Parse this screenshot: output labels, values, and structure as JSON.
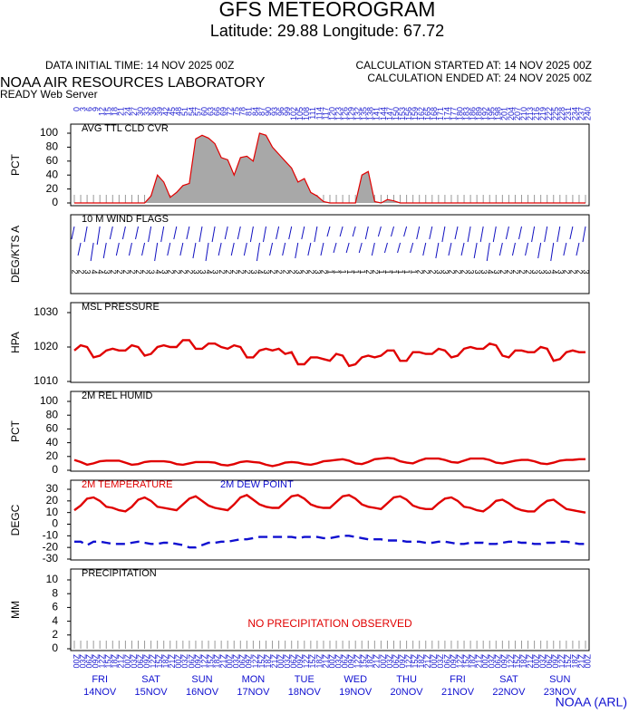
{
  "header": {
    "title": "GFS METEOROGRAM",
    "location": "Latitude: 29.88 Longitude:  67.72",
    "init_time": "DATA INITIAL TIME: 14 NOV 2025 00Z",
    "calc_started": "CALCULATION STARTED AT: 14 NOV 2025 00Z",
    "calc_ended": "CALCULATION ENDED AT: 24 NOV 2025 00Z",
    "lab": "NOAA AIR RESOURCES LABORATORY",
    "server": "READY Web Server",
    "credit": "NOAA (ARL)"
  },
  "time_axis": {
    "xlim": [
      0,
      240
    ],
    "x": [
      0,
      3,
      6,
      9,
      12,
      15,
      18,
      21,
      24,
      27,
      30,
      33,
      36,
      39,
      42,
      45,
      48,
      51,
      54,
      57,
      60,
      63,
      66,
      69,
      72,
      75,
      78,
      81,
      84,
      87,
      90,
      93,
      96,
      99,
      102,
      105,
      108,
      111,
      114,
      117,
      120,
      123,
      126,
      129,
      132,
      135,
      138,
      141,
      144,
      147,
      150,
      153,
      156,
      159,
      162,
      165,
      168,
      171,
      174,
      177,
      180,
      183,
      186,
      189,
      192,
      195,
      198,
      201,
      204,
      207,
      210,
      213,
      216,
      219,
      222,
      225,
      228,
      231,
      234,
      237,
      240
    ],
    "hour_labels": [
      "00Z",
      "03Z",
      "06Z",
      "09Z",
      "12Z",
      "15Z",
      "18Z",
      "21Z",
      "00Z",
      "03Z",
      "06Z",
      "09Z",
      "12Z",
      "15Z",
      "18Z",
      "21Z",
      "00Z",
      "03Z",
      "06Z",
      "09Z",
      "12Z",
      "15Z",
      "18Z",
      "21Z",
      "00Z",
      "03Z",
      "06Z",
      "09Z",
      "12Z",
      "15Z",
      "18Z",
      "21Z",
      "00Z",
      "03Z",
      "06Z",
      "09Z",
      "12Z",
      "15Z",
      "18Z",
      "21Z",
      "00Z",
      "03Z",
      "06Z",
      "09Z",
      "12Z",
      "15Z",
      "18Z",
      "21Z",
      "00Z",
      "03Z",
      "06Z",
      "09Z",
      "12Z",
      "15Z",
      "18Z",
      "21Z",
      "00Z",
      "03Z",
      "06Z",
      "09Z",
      "12Z",
      "15Z",
      "18Z",
      "21Z",
      "00Z",
      "03Z",
      "06Z",
      "09Z",
      "12Z",
      "15Z",
      "18Z",
      "21Z",
      "00Z",
      "03Z",
      "06Z",
      "09Z",
      "12Z",
      "15Z",
      "18Z",
      "21Z",
      "00Z"
    ],
    "days": [
      {
        "name": "FRI",
        "date": "14NOV"
      },
      {
        "name": "SAT",
        "date": "15NOV"
      },
      {
        "name": "SUN",
        "date": "16NOV"
      },
      {
        "name": "MON",
        "date": "17NOV"
      },
      {
        "name": "TUE",
        "date": "18NOV"
      },
      {
        "name": "WED",
        "date": "19NOV"
      },
      {
        "name": "THU",
        "date": "20NOV"
      },
      {
        "name": "FRI",
        "date": "21NOV"
      },
      {
        "name": "SAT",
        "date": "22NOV"
      },
      {
        "name": "SUN",
        "date": "23NOV"
      }
    ]
  },
  "chart_data": [
    {
      "type": "area",
      "title": "AVG TTL CLD CVR",
      "ylabel": "PCT",
      "ylim": [
        0,
        100
      ],
      "yticks": [
        0,
        20,
        40,
        60,
        80,
        100
      ],
      "series": [
        {
          "name": "AVG TTL CLD CVR",
          "color": "#e00000",
          "fill": "#a8a8a8",
          "values": [
            0,
            0,
            0,
            0,
            0,
            0,
            0,
            0,
            0,
            0,
            0,
            0,
            10,
            40,
            30,
            8,
            15,
            25,
            28,
            92,
            97,
            93,
            85,
            65,
            62,
            40,
            65,
            67,
            60,
            100,
            97,
            80,
            70,
            60,
            50,
            30,
            35,
            15,
            10,
            2,
            0,
            0,
            0,
            0,
            0,
            40,
            45,
            2,
            0,
            5,
            3,
            0,
            0,
            0,
            0,
            0,
            0,
            0,
            0,
            0,
            0,
            0,
            0,
            0,
            0,
            0,
            0,
            0,
            0,
            0,
            0,
            0,
            0,
            0,
            0,
            0,
            0,
            0,
            0,
            0,
            0
          ]
        }
      ]
    },
    {
      "type": "wind",
      "title": "10 M  WIND FLAGS",
      "ylabel": "DEG/KTS  A",
      "color": "#1010c0",
      "series": [
        {
          "name": "10 M  WIND FLAGS",
          "color": "#1010c0",
          "values": [
            2,
            2,
            3,
            4,
            4,
            3,
            2,
            2,
            2,
            2,
            2,
            2,
            3,
            4,
            3,
            2,
            2,
            2,
            2,
            3,
            3,
            4,
            3,
            2,
            2,
            2,
            2,
            2,
            3,
            4,
            3,
            2,
            2,
            2,
            2,
            3,
            2,
            2,
            3,
            2,
            1,
            1,
            1,
            1,
            1,
            1,
            2,
            2,
            1,
            1,
            1,
            1,
            1,
            1,
            2,
            2,
            2,
            3,
            3,
            2,
            2,
            2,
            3,
            3,
            3,
            4,
            3,
            2,
            2,
            2,
            2,
            2,
            3,
            3,
            3,
            4,
            3,
            2,
            2,
            2,
            3
          ]
        }
      ]
    },
    {
      "type": "line",
      "title": "MSL PRESSURE",
      "ylabel": "HPA",
      "ylim": [
        1010,
        1030
      ],
      "yticks": [
        1010,
        1020,
        1030
      ],
      "series": [
        {
          "name": "MSL PRESSURE",
          "color": "#e00000",
          "values": [
            1019,
            1020.5,
            1020,
            1017,
            1017.5,
            1019,
            1019.5,
            1019,
            1019,
            1020.5,
            1020,
            1017.5,
            1018,
            1020,
            1020.5,
            1020,
            1020,
            1022,
            1022,
            1019.5,
            1019.5,
            1021,
            1021,
            1020,
            1019.5,
            1020.5,
            1020,
            1017,
            1017,
            1019,
            1019.5,
            1019,
            1019.5,
            1018,
            1018.5,
            1015,
            1015,
            1017,
            1017,
            1016.5,
            1016,
            1018,
            1017.5,
            1014.5,
            1015,
            1017,
            1017.5,
            1017,
            1017.5,
            1019,
            1019,
            1016,
            1016,
            1018.5,
            1018.5,
            1018,
            1018,
            1019.5,
            1019,
            1017,
            1017.5,
            1019.5,
            1020,
            1019.5,
            1019.5,
            1021,
            1020.5,
            1017.5,
            1017,
            1019,
            1019,
            1018.5,
            1018.5,
            1020,
            1019.5,
            1016,
            1016.5,
            1018.5,
            1019,
            1018.5,
            1018.5
          ]
        }
      ]
    },
    {
      "type": "line",
      "title": "2M REL HUMID",
      "ylabel": "PCT",
      "ylim": [
        0,
        100
      ],
      "yticks": [
        0,
        20,
        40,
        60,
        80,
        100
      ],
      "series": [
        {
          "name": "2M REL HUMID",
          "color": "#e00000",
          "values": [
            15,
            12,
            8,
            10,
            13,
            14,
            14,
            14,
            11,
            8,
            9,
            12,
            13,
            13,
            13,
            12,
            9,
            8,
            10,
            12,
            12,
            12,
            11,
            8,
            7,
            9,
            12,
            13,
            12,
            11,
            8,
            6,
            8,
            11,
            12,
            11,
            9,
            8,
            10,
            13,
            14,
            15,
            16,
            14,
            10,
            9,
            12,
            16,
            17,
            18,
            17,
            13,
            11,
            10,
            14,
            17,
            17,
            17,
            15,
            12,
            11,
            14,
            17,
            17,
            17,
            15,
            11,
            10,
            12,
            14,
            15,
            15,
            13,
            10,
            9,
            11,
            14,
            15,
            15,
            16,
            16
          ]
        }
      ]
    },
    {
      "type": "line",
      "ylabel": "DEGC",
      "ylim": [
        -30,
        30
      ],
      "yticks": [
        -30,
        -20,
        -10,
        0,
        10,
        20,
        30
      ],
      "legend": true,
      "series": [
        {
          "name": "2M TEMPERATURE",
          "color": "#e00000",
          "values": [
            12,
            16,
            22,
            23,
            20,
            15,
            14,
            12,
            11,
            15,
            21,
            23,
            20,
            15,
            14,
            13,
            12,
            17,
            22,
            24,
            20,
            16,
            14,
            13,
            12,
            17,
            23,
            25,
            21,
            17,
            15,
            14,
            14,
            19,
            24,
            25,
            22,
            17,
            15,
            14,
            14,
            19,
            24,
            25,
            22,
            17,
            15,
            14,
            13,
            18,
            23,
            24,
            21,
            16,
            14,
            13,
            13,
            18,
            22,
            23,
            20,
            15,
            14,
            12,
            11,
            15,
            20,
            21,
            18,
            14,
            12,
            11,
            11,
            16,
            20,
            21,
            17,
            13,
            12,
            11,
            10
          ]
        },
        {
          "name": "2M   DEW POINT",
          "color": "#1010d0",
          "dashed": true,
          "values": [
            -15,
            -15,
            -18,
            -15,
            -15,
            -16,
            -17,
            -17,
            -17,
            -16,
            -15,
            -16,
            -17,
            -17,
            -16,
            -16,
            -17,
            -18,
            -20,
            -20,
            -18,
            -16,
            -16,
            -15,
            -15,
            -14,
            -13,
            -13,
            -12,
            -11,
            -11,
            -11,
            -11,
            -11,
            -11,
            -12,
            -11,
            -11,
            -11,
            -12,
            -12,
            -11,
            -10,
            -10,
            -11,
            -12,
            -13,
            -13,
            -13,
            -14,
            -14,
            -14,
            -15,
            -15,
            -15,
            -16,
            -16,
            -15,
            -15,
            -16,
            -17,
            -17,
            -16,
            -16,
            -16,
            -17,
            -17,
            -16,
            -15,
            -15,
            -16,
            -16,
            -17,
            -17,
            -16,
            -16,
            -15,
            -15,
            -16,
            -17,
            -17
          ]
        }
      ]
    },
    {
      "type": "precip",
      "title": "PRECIPITATION",
      "ylabel": "MM",
      "ylim": [
        0,
        10
      ],
      "yticks": [
        0,
        2,
        4,
        6,
        8,
        10
      ],
      "annotation": "NO PRECIPITATION OBSERVED",
      "series": [
        {
          "name": "PRECIPITATION",
          "color": "#1010d0",
          "values": [
            0,
            0,
            0,
            0,
            0,
            0,
            0,
            0,
            0,
            0,
            0,
            0,
            0,
            0,
            0,
            0,
            0,
            0,
            0,
            0,
            0,
            0,
            0,
            0,
            0,
            0,
            0,
            0,
            0,
            0,
            0,
            0,
            0,
            0,
            0,
            0,
            0,
            0,
            0,
            0,
            0,
            0,
            0,
            0,
            0,
            0,
            0,
            0,
            0,
            0,
            0,
            0,
            0,
            0,
            0,
            0,
            0,
            0,
            0,
            0,
            0,
            0,
            0,
            0,
            0,
            0,
            0,
            0,
            0,
            0,
            0,
            0,
            0,
            0,
            0,
            0,
            0,
            0,
            0,
            0,
            0
          ]
        }
      ]
    }
  ]
}
